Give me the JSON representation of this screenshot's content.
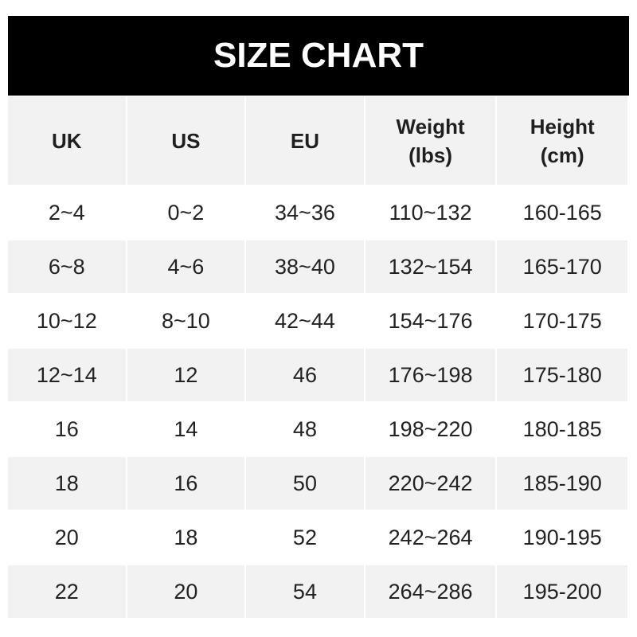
{
  "title": "SIZE CHART",
  "chart_data": {
    "type": "table",
    "title": "SIZE CHART",
    "columns": [
      "UK",
      "US",
      "EU",
      "Weight\n(lbs)",
      "Height\n(cm)"
    ],
    "rows": [
      [
        "2~4",
        "0~2",
        "34~36",
        "110~132",
        "160-165"
      ],
      [
        "6~8",
        "4~6",
        "38~40",
        "132~154",
        "165-170"
      ],
      [
        "10~12",
        "8~10",
        "42~44",
        "154~176",
        "170-175"
      ],
      [
        "12~14",
        "12",
        "46",
        "176~198",
        "175-180"
      ],
      [
        "16",
        "14",
        "48",
        "198~220",
        "180-185"
      ],
      [
        "18",
        "16",
        "50",
        "220~242",
        "185-190"
      ],
      [
        "20",
        "18",
        "52",
        "242~264",
        "190-195"
      ],
      [
        "22",
        "20",
        "54",
        "264~286",
        "195-200"
      ]
    ]
  },
  "colors": {
    "header_bg": "#000000",
    "header_text": "#ffffff",
    "stripe": "#f2f2f2"
  }
}
